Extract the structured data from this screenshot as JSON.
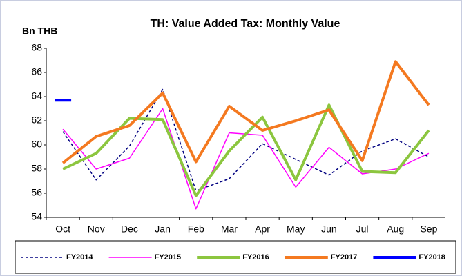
{
  "chart_data": {
    "type": "line",
    "title": "TH: Value Added Tax: Monthly Value",
    "y_label": "Bn THB",
    "categories": [
      "Oct",
      "Nov",
      "Dec",
      "Jan",
      "Feb",
      "Mar",
      "Apr",
      "May",
      "Jun",
      "Jul",
      "Aug",
      "Sep"
    ],
    "series": [
      {
        "name": "FY2014",
        "color": "#000080",
        "dashed": true,
        "width": 1.5,
        "values": [
          61.1,
          57.1,
          59.9,
          64.6,
          56.2,
          57.2,
          60.1,
          58.8,
          57.5,
          59.5,
          60.5,
          59.0
        ]
      },
      {
        "name": "FY2015",
        "color": "#ff00ff",
        "width": 1.5,
        "values": [
          61.3,
          58.0,
          58.9,
          63.0,
          54.7,
          61.0,
          60.8,
          56.5,
          59.8,
          57.6,
          58.0,
          59.3
        ]
      },
      {
        "name": "FY2016",
        "color": "#8cc63f",
        "width": 4,
        "values": [
          58.0,
          59.3,
          62.2,
          62.1,
          55.8,
          59.5,
          62.3,
          57.1,
          63.3,
          57.8,
          57.7,
          61.2
        ]
      },
      {
        "name": "FY2017",
        "color": "#f47920",
        "width": 4,
        "values": [
          58.5,
          60.7,
          61.6,
          64.3,
          58.6,
          63.2,
          61.2,
          62.0,
          62.9,
          58.7,
          66.9,
          63.3
        ]
      },
      {
        "name": "FY2018",
        "color": "#0000ff",
        "width": 4,
        "values": [
          63.7,
          null,
          null,
          null,
          null,
          null,
          null,
          null,
          null,
          null,
          null,
          null
        ]
      }
    ],
    "ylim": [
      54,
      68
    ],
    "yticks": [
      54,
      56,
      58,
      60,
      62,
      64,
      66,
      68
    ],
    "legend": "bottom"
  }
}
